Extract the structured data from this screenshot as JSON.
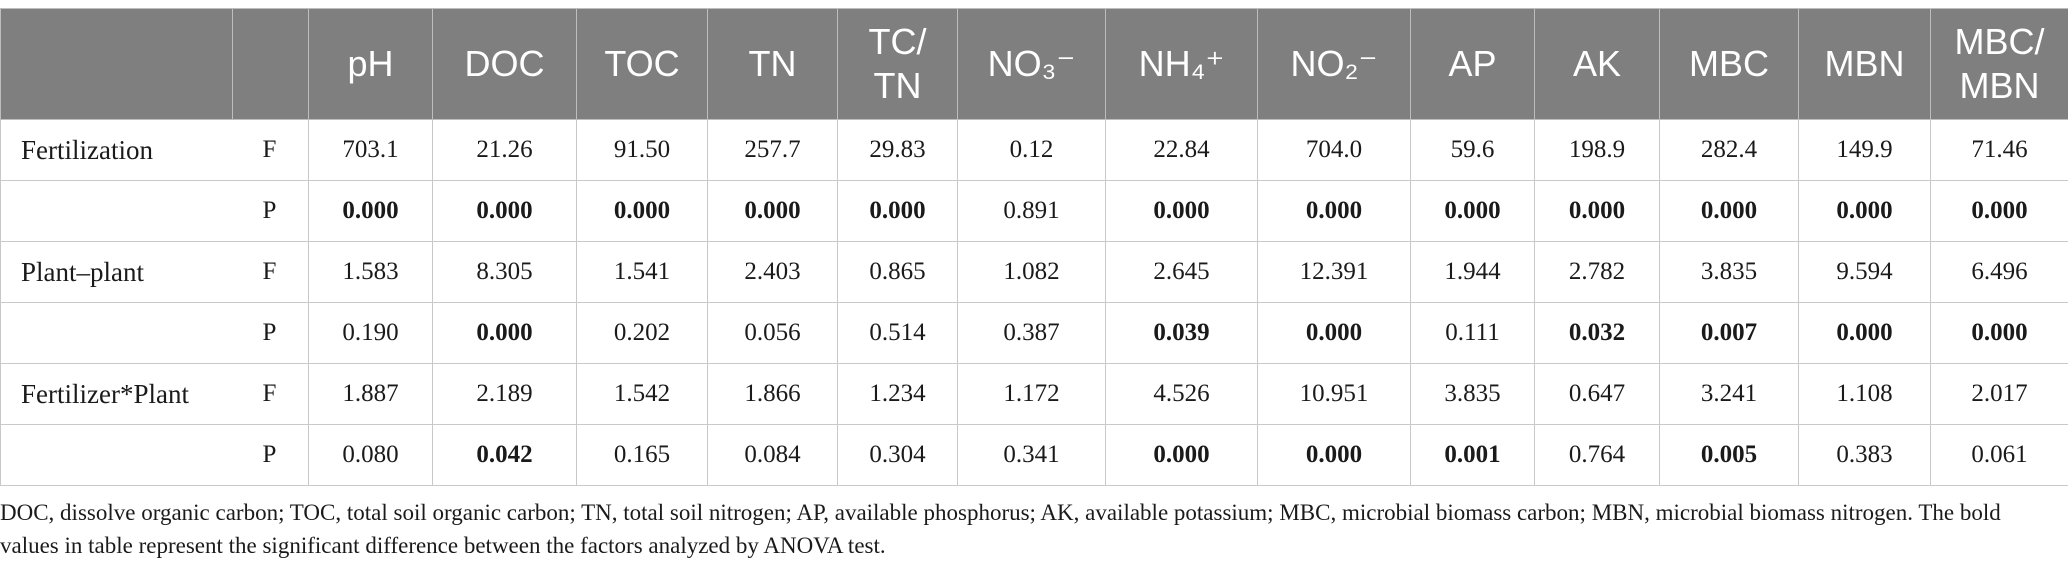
{
  "table": {
    "headers": [
      "",
      "",
      "pH",
      "DOC",
      "TOC",
      "TN",
      "TC/\nTN",
      "NO₃⁻",
      "NH₄⁺",
      "NO₂⁻",
      "AP",
      "AK",
      "MBC",
      "MBN",
      "MBC/\nMBN"
    ],
    "rows": [
      {
        "factor": "Fertilization",
        "stat": "F",
        "values": [
          "703.1",
          "21.26",
          "91.50",
          "257.7",
          "29.83",
          "0.12",
          "22.84",
          "704.0",
          "59.6",
          "198.9",
          "282.4",
          "149.9",
          "71.46"
        ],
        "bold": [
          false,
          false,
          false,
          false,
          false,
          false,
          false,
          false,
          false,
          false,
          false,
          false,
          false
        ]
      },
      {
        "factor": "",
        "stat": "P",
        "values": [
          "0.000",
          "0.000",
          "0.000",
          "0.000",
          "0.000",
          "0.891",
          "0.000",
          "0.000",
          "0.000",
          "0.000",
          "0.000",
          "0.000",
          "0.000"
        ],
        "bold": [
          true,
          true,
          true,
          true,
          true,
          false,
          true,
          true,
          true,
          true,
          true,
          true,
          true
        ]
      },
      {
        "factor": "Plant–plant",
        "stat": "F",
        "values": [
          "1.583",
          "8.305",
          "1.541",
          "2.403",
          "0.865",
          "1.082",
          "2.645",
          "12.391",
          "1.944",
          "2.782",
          "3.835",
          "9.594",
          "6.496"
        ],
        "bold": [
          false,
          false,
          false,
          false,
          false,
          false,
          false,
          false,
          false,
          false,
          false,
          false,
          false
        ]
      },
      {
        "factor": "",
        "stat": "P",
        "values": [
          "0.190",
          "0.000",
          "0.202",
          "0.056",
          "0.514",
          "0.387",
          "0.039",
          "0.000",
          "0.111",
          "0.032",
          "0.007",
          "0.000",
          "0.000"
        ],
        "bold": [
          false,
          true,
          false,
          false,
          false,
          false,
          true,
          true,
          false,
          true,
          true,
          true,
          true
        ]
      },
      {
        "factor": "Fertilizer*Plant",
        "stat": "F",
        "values": [
          "1.887",
          "2.189",
          "1.542",
          "1.866",
          "1.234",
          "1.172",
          "4.526",
          "10.951",
          "3.835",
          "0.647",
          "3.241",
          "1.108",
          "2.017"
        ],
        "bold": [
          false,
          false,
          false,
          false,
          false,
          false,
          false,
          false,
          false,
          false,
          false,
          false,
          false
        ]
      },
      {
        "factor": "",
        "stat": "P",
        "values": [
          "0.080",
          "0.042",
          "0.165",
          "0.084",
          "0.304",
          "0.341",
          "0.000",
          "0.000",
          "0.001",
          "0.764",
          "0.005",
          "0.383",
          "0.061"
        ],
        "bold": [
          false,
          true,
          false,
          false,
          false,
          false,
          true,
          true,
          true,
          false,
          true,
          false,
          false
        ]
      }
    ]
  },
  "footnote": "DOC, dissolve organic carbon; TOC, total soil organic carbon; TN, total soil nitrogen; AP, available phosphorus; AK, available potassium; MBC, microbial biomass carbon; MBN, microbial biomass nitrogen. The bold values in table represent the significant difference between the factors analyzed by ANOVA test."
}
